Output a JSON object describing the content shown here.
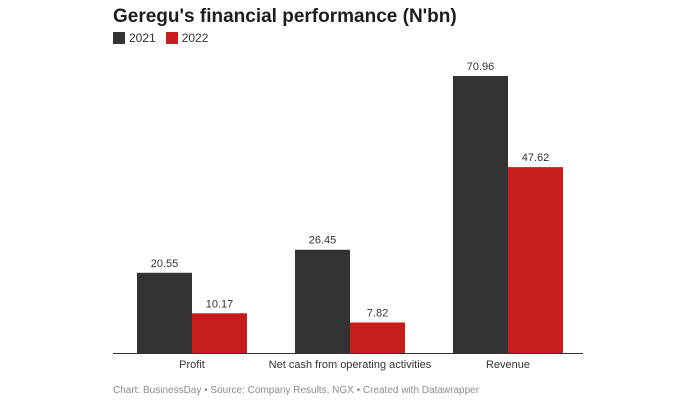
{
  "chart_data": {
    "type": "bar",
    "title": "Geregu's financial performance (N'bn)",
    "categories": [
      "Profit",
      "Net cash from operating activities",
      "Revenue"
    ],
    "series": [
      {
        "name": "2021",
        "color": "#333333",
        "values": [
          20.55,
          26.45,
          70.96
        ]
      },
      {
        "name": "2022",
        "color": "#c71e1d",
        "values": [
          10.17,
          7.82,
          47.62
        ]
      }
    ],
    "value_labels": [
      [
        "20.55",
        "26.45",
        "70.96"
      ],
      [
        "10.17",
        "7.82",
        "47.62"
      ]
    ],
    "ylim": [
      0,
      70.96
    ],
    "grid": false,
    "legend_position": "top-left"
  },
  "footer": {
    "text": "Chart: BusinessDay • Source: Company Results, NGX • Created with Datawrapper"
  }
}
